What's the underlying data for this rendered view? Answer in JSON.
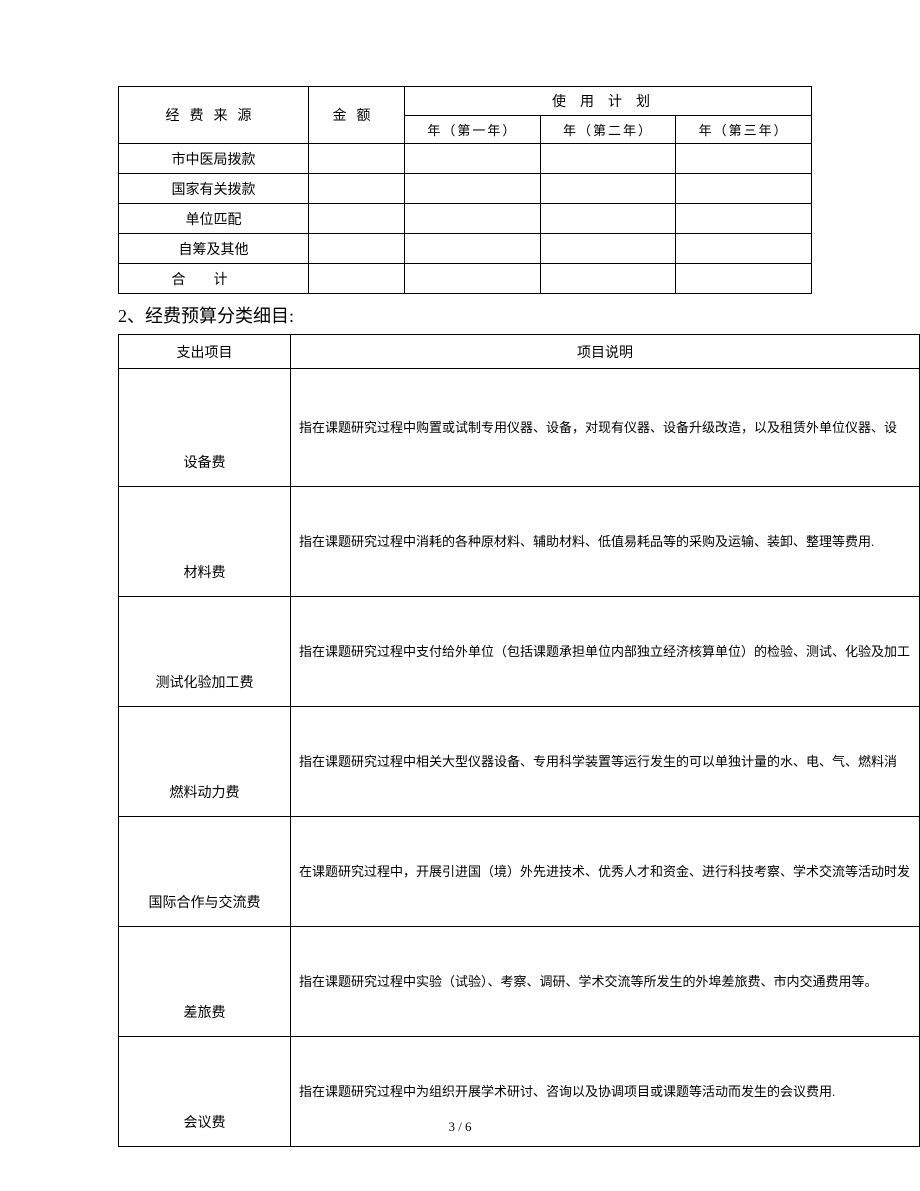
{
  "table1": {
    "headers": {
      "source": "经费来源",
      "amount": "金额",
      "plan": "使用计划",
      "year1": "年（第一年）",
      "year2": "年（第二年）",
      "year3": "年（第三年）"
    },
    "rows": [
      {
        "label": "市中医局拨款",
        "amount": "",
        "y1": "",
        "y2": "",
        "y3": ""
      },
      {
        "label": "国家有关拨款",
        "amount": "",
        "y1": "",
        "y2": "",
        "y3": ""
      },
      {
        "label": "单位匹配",
        "amount": "",
        "y1": "",
        "y2": "",
        "y3": ""
      },
      {
        "label": "自筹及其他",
        "amount": "",
        "y1": "",
        "y2": "",
        "y3": ""
      },
      {
        "label": "合计",
        "amount": "",
        "y1": "",
        "y2": "",
        "y3": "",
        "spaced": true
      }
    ]
  },
  "section_title": "2、经费预算分类细目:",
  "table2": {
    "headers": {
      "item": "支出项目",
      "desc": "项目说明"
    },
    "rows": [
      {
        "item": "设备费",
        "desc": "指在课题研究过程中购置或试制专用仪器、设备，对现有仪器、设备升级改造，以及租赁外单位仪器、设"
      },
      {
        "item": "材料费",
        "desc": "指在课题研究过程中消耗的各种原材料、辅助材料、低值易耗品等的采购及运输、装卸、整理等费用."
      },
      {
        "item": "测试化验加工费",
        "desc": "指在课题研究过程中支付给外单位（包括课题承担单位内部独立经济核算单位）的检验、测试、化验及加工"
      },
      {
        "item": "燃料动力费",
        "desc": "指在课题研究过程中相关大型仪器设备、专用科学装置等运行发生的可以单独计量的水、电、气、燃料消"
      },
      {
        "item": "国际合作与交流费",
        "desc": "在课题研究过程中，开展引进国（境）外先进技术、优秀人才和资金、进行科技考察、学术交流等活动时发"
      },
      {
        "item": "差旅费",
        "desc": "指在课题研究过程中实验（试验）、考察、调研、学术交流等所发生的外埠差旅费、市内交通费用等。"
      },
      {
        "item": "会议费",
        "desc": "指在课题研究过程中为组织开展学术研讨、咨询以及协调项目或课题等活动而发生的会议费用."
      }
    ]
  },
  "footer": "3 / 6"
}
